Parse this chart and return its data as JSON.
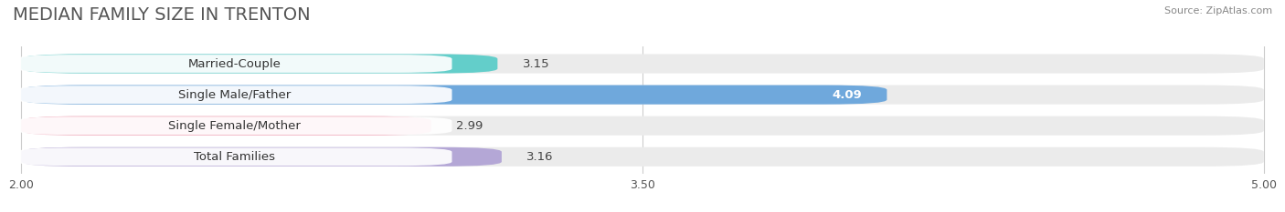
{
  "title": "MEDIAN FAMILY SIZE IN TRENTON",
  "source": "Source: ZipAtlas.com",
  "categories": [
    "Married-Couple",
    "Single Male/Father",
    "Single Female/Mother",
    "Total Families"
  ],
  "values": [
    3.15,
    4.09,
    2.99,
    3.16
  ],
  "bar_colors": [
    "#63ceca",
    "#6fa8dc",
    "#f4a7b9",
    "#b4a7d6"
  ],
  "xlim_min": 2.0,
  "xlim_max": 5.0,
  "xticks": [
    2.0,
    3.5,
    5.0
  ],
  "background_color": "#ffffff",
  "bar_bg_color": "#ebebeb",
  "title_fontsize": 14,
  "label_fontsize": 9.5,
  "value_fontsize": 9.5,
  "bar_height": 0.62,
  "fig_width": 14.06,
  "fig_height": 2.33
}
